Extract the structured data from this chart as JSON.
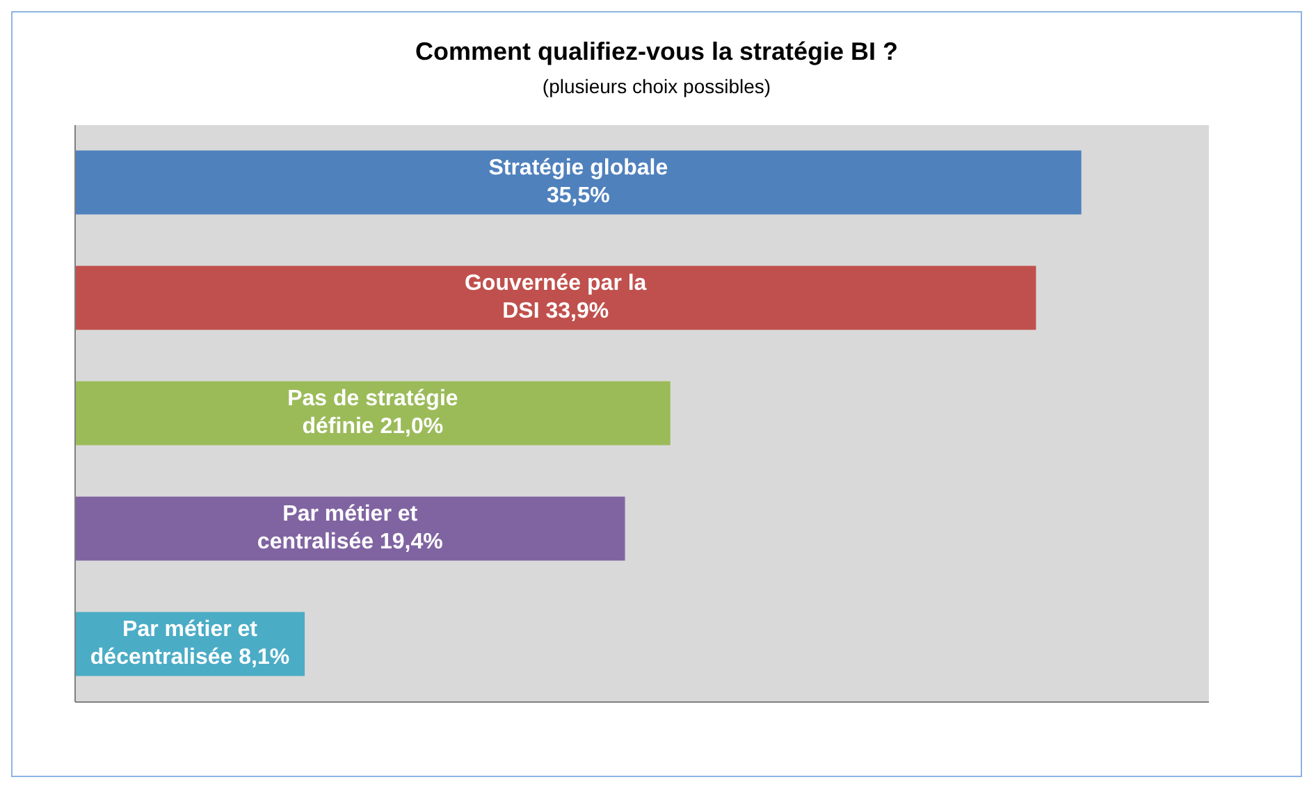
{
  "chart_data": {
    "type": "bar",
    "orientation": "horizontal",
    "title": "Comment qualifiez-vous la stratégie BI ?",
    "subtitle": "(plusieurs choix possibles)",
    "categories": [
      "Stratégie globale",
      "Gouvernée par la DSI",
      "Pas de stratégie définie",
      "Par métier et centralisée",
      "Par métier et décentralisée"
    ],
    "values": [
      35.5,
      33.9,
      21.0,
      19.4,
      8.1
    ],
    "value_labels": [
      "35,5%",
      "33,9%",
      "21,0%",
      "19,4%",
      "8,1%"
    ],
    "colors": [
      "#4f81bd",
      "#c0504d",
      "#9bbb59",
      "#8064a2",
      "#4bacc6"
    ],
    "xlim": [
      0,
      40
    ]
  }
}
